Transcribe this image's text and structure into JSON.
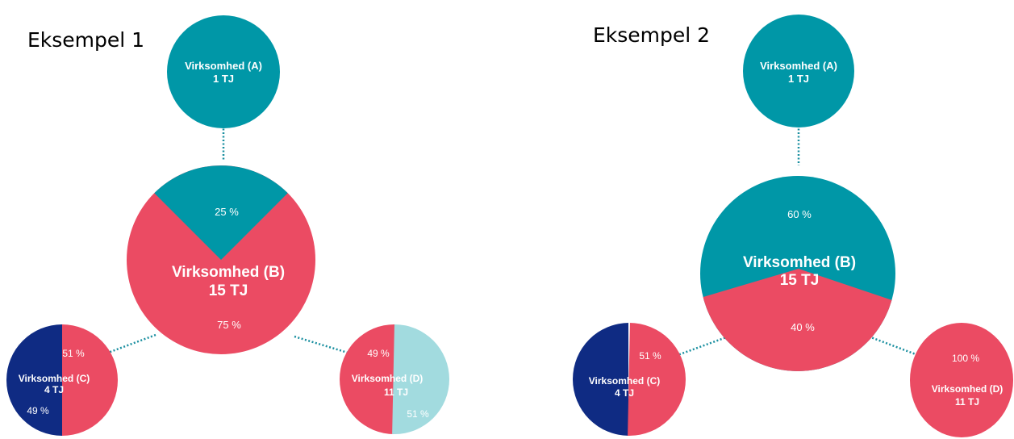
{
  "colors": {
    "teal": "#0097a7",
    "red": "#eb4b63",
    "navy": "#0f2b83",
    "light_teal": "#a2dbdf",
    "connector": "#1a8fa0"
  },
  "examples": [
    {
      "heading": "Eksempel 1",
      "companies": {
        "a": {
          "name": "Virksomhed (A)",
          "value": "1 TJ"
        },
        "b": {
          "name": "Virksomhed (B)",
          "value": "15 TJ",
          "slices": [
            {
              "label": "25 %",
              "share": 25,
              "color": "teal"
            },
            {
              "label": "75 %",
              "share": 75,
              "color": "red"
            }
          ]
        },
        "c": {
          "name": "Virksomhed (C)",
          "value": "4 TJ",
          "slices": [
            {
              "label": "51 %",
              "share": 51,
              "color": "red"
            },
            {
              "label": "49 %",
              "share": 49,
              "color": "navy"
            }
          ]
        },
        "d": {
          "name": "Virksomhed (D)",
          "value": "11 TJ",
          "slices": [
            {
              "label": "51 %",
              "share": 51,
              "color": "light_teal"
            },
            {
              "label": "49 %",
              "share": 49,
              "color": "red"
            }
          ]
        }
      }
    },
    {
      "heading": "Eksempel 2",
      "companies": {
        "a": {
          "name": "Virksomhed (A)",
          "value": "1 TJ"
        },
        "b": {
          "name": "Virksomhed (B)",
          "value": "15 TJ",
          "slices": [
            {
              "label": "60 %",
              "share": 60,
              "color": "teal"
            },
            {
              "label": "40 %",
              "share": 40,
              "color": "red"
            }
          ]
        },
        "c": {
          "name": "Virksomhed (C)",
          "value": "4 TJ",
          "slices": [
            {
              "label": "51 %",
              "share": 51,
              "color": "red"
            },
            {
              "label": "49 %",
              "share": 49,
              "color": "navy"
            }
          ]
        },
        "d": {
          "name": "Virksomhed (D)",
          "value": "11 TJ",
          "slices": [
            {
              "label": "100 %",
              "share": 100,
              "color": "red"
            }
          ]
        }
      }
    }
  ]
}
